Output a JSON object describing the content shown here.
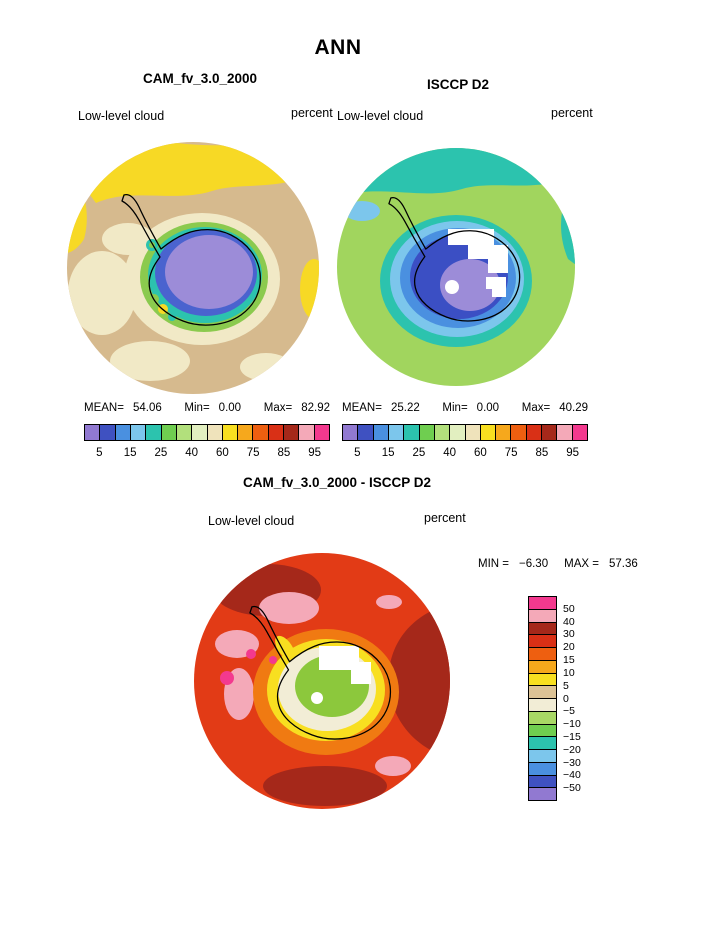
{
  "page_title": "ANN",
  "panels": [
    {
      "title": "CAM_fv_3.0_2000",
      "field": "Low-level cloud",
      "units": "percent",
      "stats": {
        "mean_label": "MEAN=",
        "mean": "54.06",
        "min_label": "Min=",
        "min": "0.00",
        "max_label": "Max=",
        "max": "82.92"
      },
      "colorbar": {
        "ticks": [
          "5",
          "15",
          "25",
          "40",
          "60",
          "75",
          "85",
          "95"
        ]
      }
    },
    {
      "title": "ISCCP D2",
      "field": "Low-level cloud",
      "units": "percent",
      "stats": {
        "mean_label": "MEAN=",
        "mean": "25.22",
        "min_label": "Min=",
        "min": "0.00",
        "max_label": "Max=",
        "max": "40.29"
      },
      "colorbar": {
        "ticks": [
          "5",
          "15",
          "25",
          "40",
          "60",
          "75",
          "85",
          "95"
        ]
      }
    }
  ],
  "shared_colorbar_colors": [
    "#9179d1",
    "#3f51c1",
    "#4a90e0",
    "#7cc6ec",
    "#2cc3ae",
    "#6fce50",
    "#b2e07c",
    "#e2efc0",
    "#efe3bb",
    "#f8df20",
    "#f6a81c",
    "#ee5f10",
    "#d93016",
    "#a5281a",
    "#f4a9b8",
    "#f3398e"
  ],
  "diff_panel": {
    "title": "CAM_fv_3.0_2000 - ISCCP D2",
    "field": "Low-level cloud",
    "units": "percent",
    "min_label": "MIN =",
    "min": "−6.30",
    "max_label": "MAX =",
    "max": "57.36",
    "colorbar": {
      "labels": [
        "50",
        "40",
        "30",
        "20",
        "15",
        "10",
        "5",
        "0",
        "−5",
        "−10",
        "−15",
        "−20",
        "−30",
        "−40",
        "−50"
      ],
      "colors": [
        "#f3398e",
        "#f4a9b8",
        "#a5281a",
        "#d93016",
        "#ee5f10",
        "#f6a81c",
        "#f8df20",
        "#dcc295",
        "#f2edd6",
        "#a8d865",
        "#6fce50",
        "#2cc3ae",
        "#7cc6ec",
        "#4a90e0",
        "#3f51c1",
        "#9179d1"
      ]
    }
  },
  "chart_data": [
    {
      "type": "heatmap",
      "subtype": "south-polar-stereographic-filled-contour-map",
      "title": "CAM_fv_3.0_2000",
      "season": "ANN",
      "variable": "Low-level cloud",
      "units": "percent",
      "stats": {
        "mean": 54.06,
        "min": 0.0,
        "max": 82.92
      },
      "colorbar_tick_values": [
        5,
        15,
        25,
        40,
        60,
        75,
        85,
        95
      ],
      "legend_position": "below",
      "notes": "Model low-level cloud fraction; Antarctic interior ~5-25% (purple/blue), coastal ring 25-60% (green/cyan/cream), surrounding ocean 60-75% (tan), patches 70-80% (yellow)"
    },
    {
      "type": "heatmap",
      "subtype": "south-polar-stereographic-filled-contour-map",
      "title": "ISCCP D2",
      "season": "ANN",
      "variable": "Low-level cloud",
      "units": "percent",
      "stats": {
        "mean": 25.22,
        "min": 0.0,
        "max": 40.29
      },
      "colorbar_tick_values": [
        5,
        15,
        25,
        40,
        60,
        75,
        85,
        95
      ],
      "legend_position": "below",
      "notes": "Satellite observed low-level cloud; ocean 25-40% (green/teal), Antarctic continent 5-15% (dark blue/purple) with white missing-data sectors near the pole"
    },
    {
      "type": "heatmap",
      "subtype": "south-polar-stereographic-filled-contour-map",
      "title": "CAM_fv_3.0_2000 - ISCCP D2",
      "season": "ANN",
      "variable": "Low-level cloud difference",
      "units": "percent",
      "stats": {
        "min": -6.3,
        "max": 57.36
      },
      "colorbar_tick_values": [
        50,
        40,
        30,
        20,
        15,
        10,
        5,
        0,
        -5,
        -10,
        -15,
        -20,
        -30,
        -40,
        -50
      ],
      "legend_position": "right",
      "notes": "Model minus observations; ocean mostly +20 to +40 (red/dark red) with +40-50 pink patches, ring of +10 to +20 (orange/yellow) near coast, interior ~ -10 to +5 (green/cream) with white missing-data sectors"
    }
  ]
}
